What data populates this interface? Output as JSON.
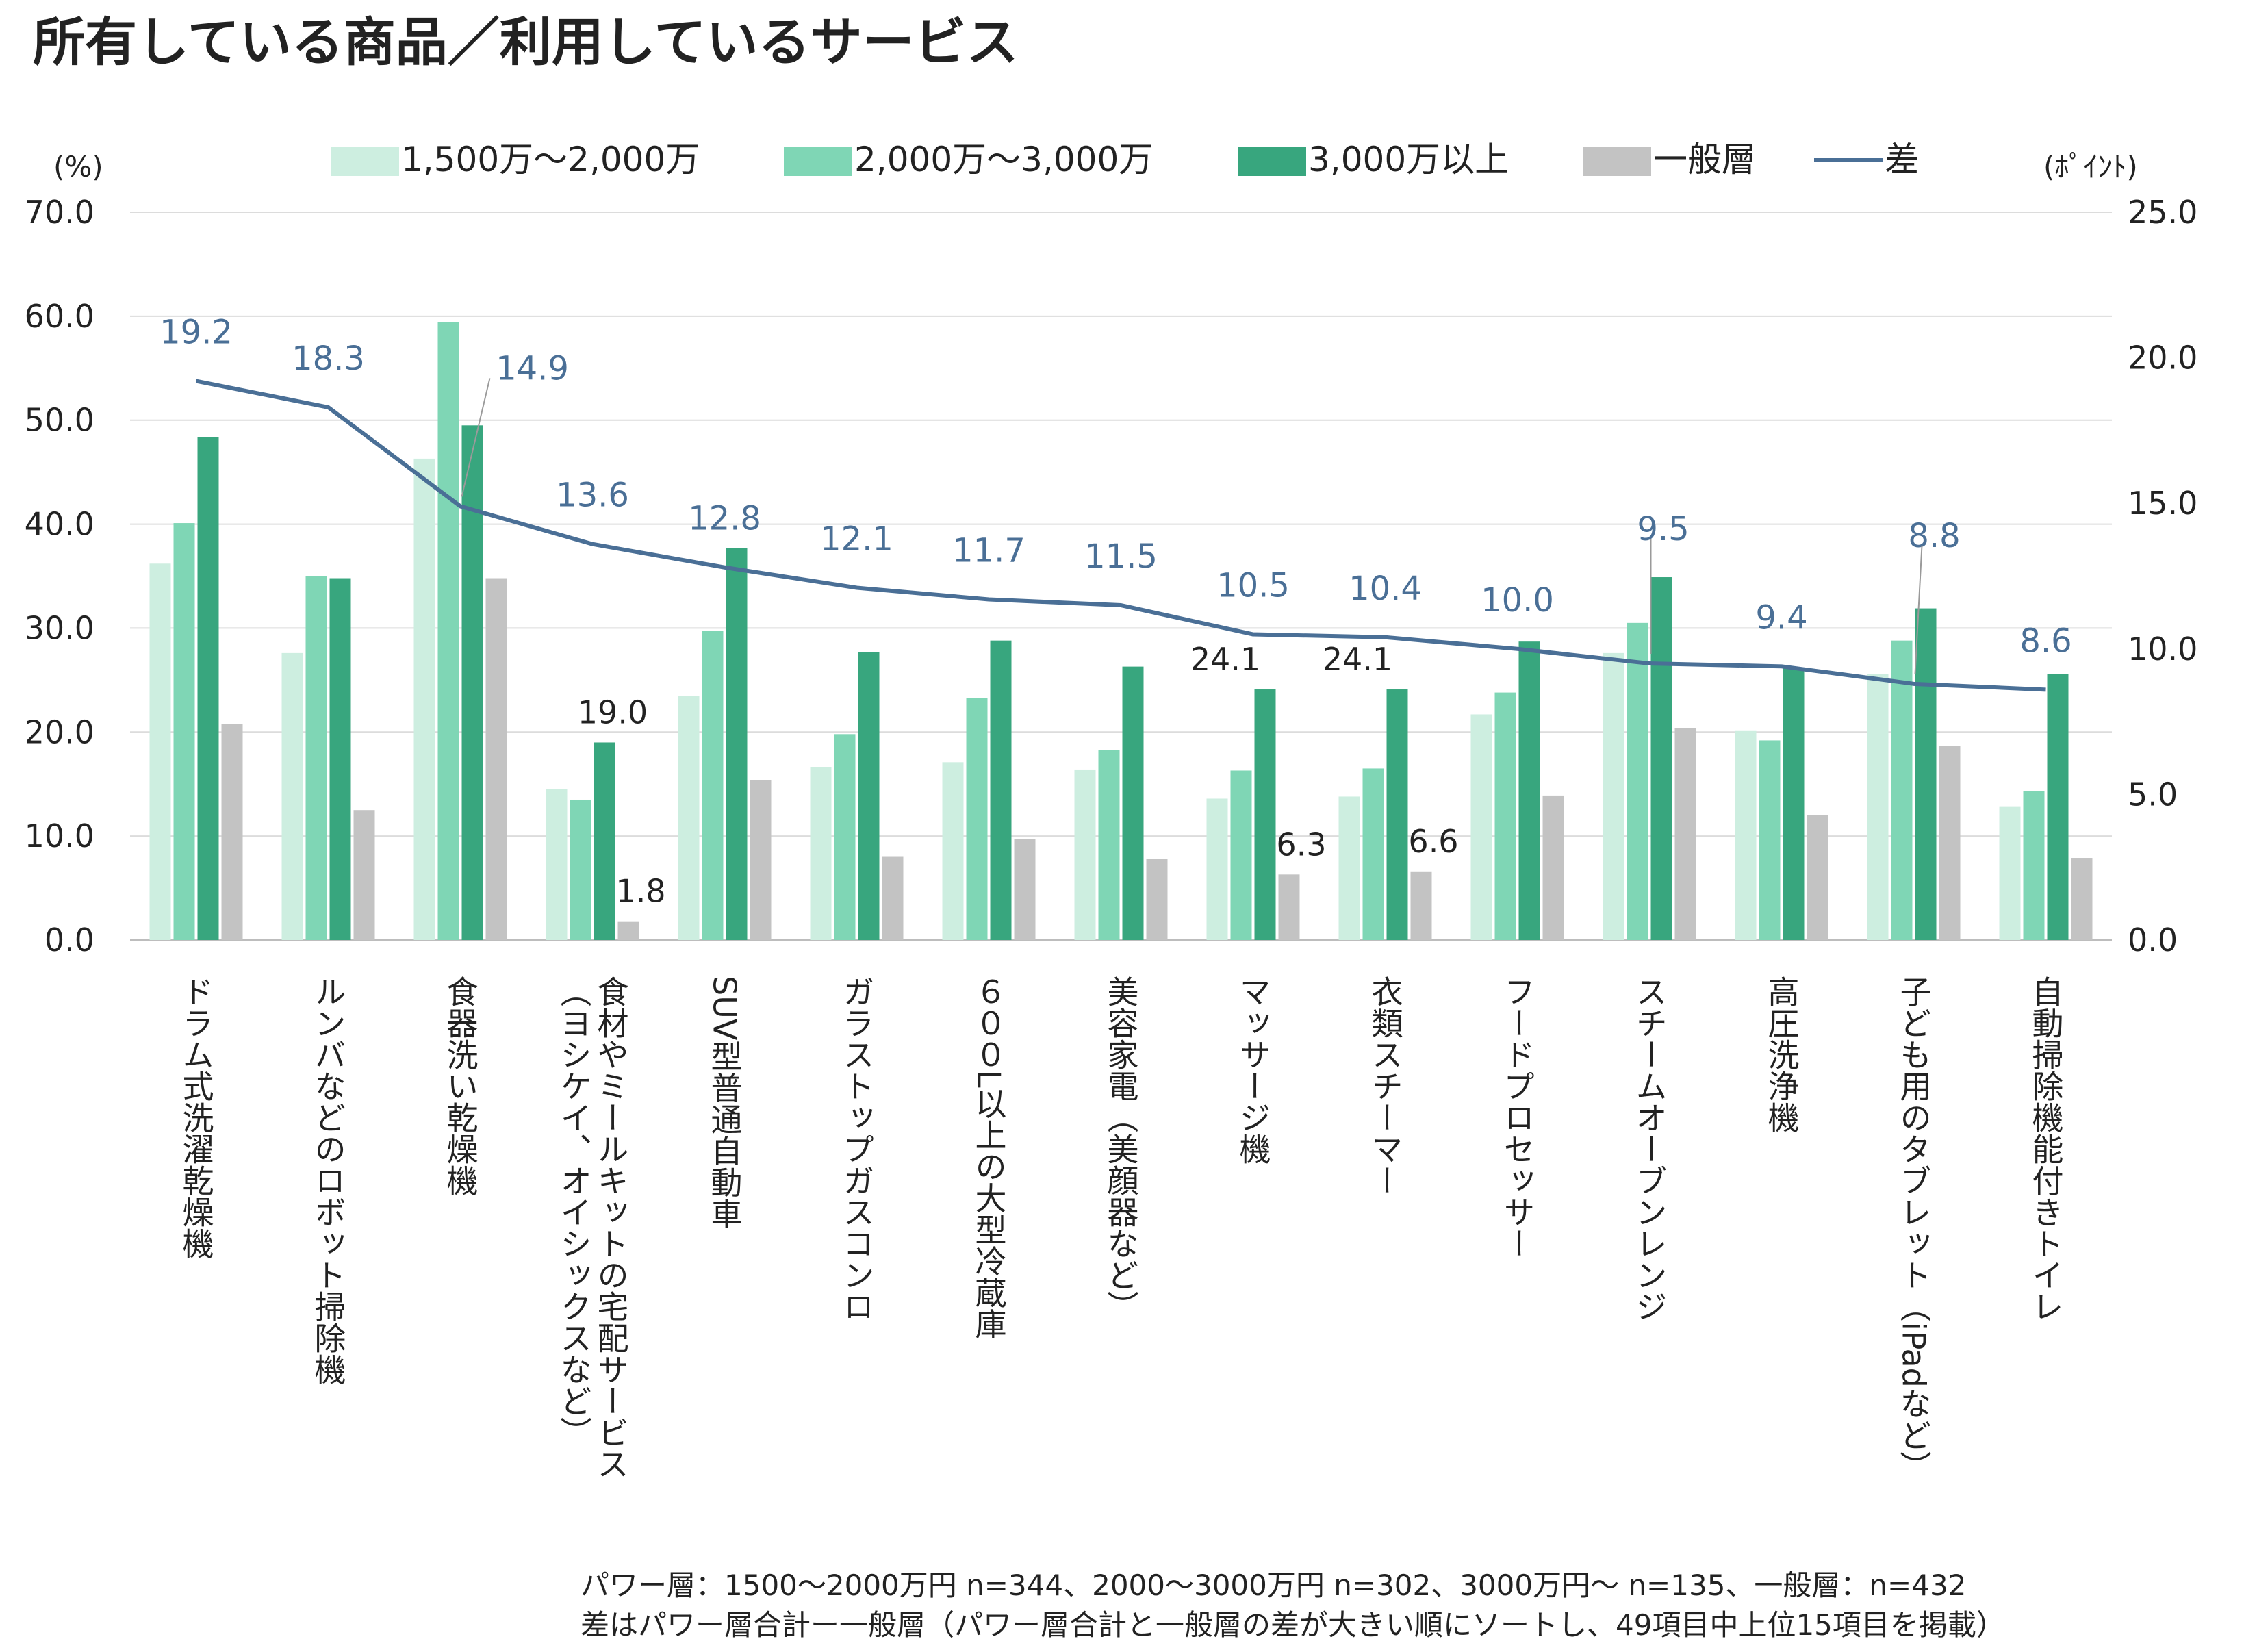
{
  "title": "所有している商品／利用しているサービス",
  "chart_data": {
    "type": "bar",
    "left_axis_label": "(%)",
    "right_axis_label": "(ﾎﾟｲﾝﾄ)",
    "ylim_left": [
      0,
      70
    ],
    "ylim_right": [
      0,
      25
    ],
    "yticks_left": [
      "0.0",
      "10.0",
      "20.0",
      "30.0",
      "40.0",
      "50.0",
      "60.0",
      "70.0"
    ],
    "yticks_right": [
      "0.0",
      "5.0",
      "10.0",
      "15.0",
      "20.0",
      "25.0"
    ],
    "grid": true,
    "legend_position": "top",
    "categories": [
      "ドラム式洗濯乾燥機",
      "ルンバなどのロボット掃除機",
      "食器洗い乾燥機",
      "食材やミールキットの宅配サービス（ヨシケイ、オイシックスなど）",
      "SUV型普通自動車",
      "ガラストップガスコンロ",
      "６００L以上の大型冷蔵庫",
      "美容家電（美顔器など）",
      "マッサージ機",
      "衣類スチーマー",
      "フードプロセッサー",
      "スチームオーブンレンジ",
      "高圧洗浄機",
      "子ども用のタブレット（iPadなど）",
      "自動掃除機能付きトイレ"
    ],
    "category_lines": [
      [
        "ドラム式洗濯乾燥機"
      ],
      [
        "ルンバなどのロボット掃除機"
      ],
      [
        "食器洗い乾燥機"
      ],
      [
        "食材やミールキットの宅配サービス",
        "（ヨシケイ、オイシックスなど）"
      ],
      [
        "SUV型普通自動車"
      ],
      [
        "ガラストップガスコンロ"
      ],
      [
        "６００L以上の大型冷蔵庫"
      ],
      [
        "美容家電（美顔器など）"
      ],
      [
        "マッサージ機"
      ],
      [
        "衣類スチーマー"
      ],
      [
        "フードプロセッサー"
      ],
      [
        "スチームオーブンレンジ"
      ],
      [
        "高圧洗浄機"
      ],
      [
        "子ども用のタブレット（iPadなど）"
      ],
      [
        "自動掃除機能付きトイレ"
      ]
    ],
    "series": [
      {
        "name": "1,500万～2,000万",
        "kind": "bar",
        "axis": "left",
        "color": "#cdeee0",
        "values": [
          36.2,
          27.6,
          46.3,
          14.5,
          23.5,
          16.6,
          17.1,
          16.4,
          13.6,
          13.8,
          21.7,
          27.6,
          20.1,
          25.6,
          12.8
        ]
      },
      {
        "name": "2,000万～3,000万",
        "kind": "bar",
        "axis": "left",
        "color": "#7fd6b5",
        "values": [
          40.1,
          35.0,
          59.4,
          13.5,
          29.7,
          19.8,
          23.3,
          18.3,
          16.3,
          16.5,
          23.8,
          30.5,
          19.2,
          28.8,
          14.3
        ]
      },
      {
        "name": "3,000万以上",
        "kind": "bar",
        "axis": "left",
        "color": "#38a67e",
        "values": [
          48.4,
          34.8,
          49.5,
          19.0,
          37.7,
          27.7,
          28.8,
          26.3,
          24.1,
          24.1,
          28.7,
          34.9,
          26.2,
          31.9,
          25.6
        ]
      },
      {
        "name": "一般層",
        "kind": "bar",
        "axis": "left",
        "color": "#c3c3c3",
        "values": [
          20.8,
          12.5,
          34.8,
          1.8,
          15.4,
          8.0,
          9.7,
          7.8,
          6.3,
          6.6,
          13.9,
          20.4,
          12.0,
          18.7,
          7.9
        ]
      },
      {
        "name": "差",
        "kind": "line",
        "axis": "right",
        "color": "#4a6f96",
        "values": [
          19.2,
          18.3,
          14.9,
          13.6,
          12.8,
          12.1,
          11.7,
          11.5,
          10.5,
          10.4,
          10.0,
          9.5,
          9.4,
          8.8,
          8.6
        ]
      }
    ],
    "line_labels": [
      "19.2",
      "18.3",
      "14.9",
      "13.6",
      "12.8",
      "12.1",
      "11.7",
      "11.5",
      "10.5",
      "10.4",
      "10.0",
      "9.5",
      "9.4",
      "8.8",
      "8.6"
    ],
    "bar_annotations": [
      {
        "category_index": 3,
        "series_index": 2,
        "text": "19.0"
      },
      {
        "category_index": 3,
        "series_index": 3,
        "text": "1.8"
      },
      {
        "category_index": 8,
        "series_index": 2,
        "text": "24.1"
      },
      {
        "category_index": 8,
        "series_index": 3,
        "text": "6.3"
      },
      {
        "category_index": 9,
        "series_index": 2,
        "text": "24.1"
      },
      {
        "category_index": 9,
        "series_index": 3,
        "text": "6.6"
      }
    ]
  },
  "footnotes": [
    "パワー層：1500～2000万円 n=344、2000～3000万円 n=302、3000万円～ n=135、一般層：n=432",
    "差はパワー層合計ー一般層（パワー層合計と一般層の差が大きい順にソートし、49項目中上位15項目を掲載）"
  ]
}
